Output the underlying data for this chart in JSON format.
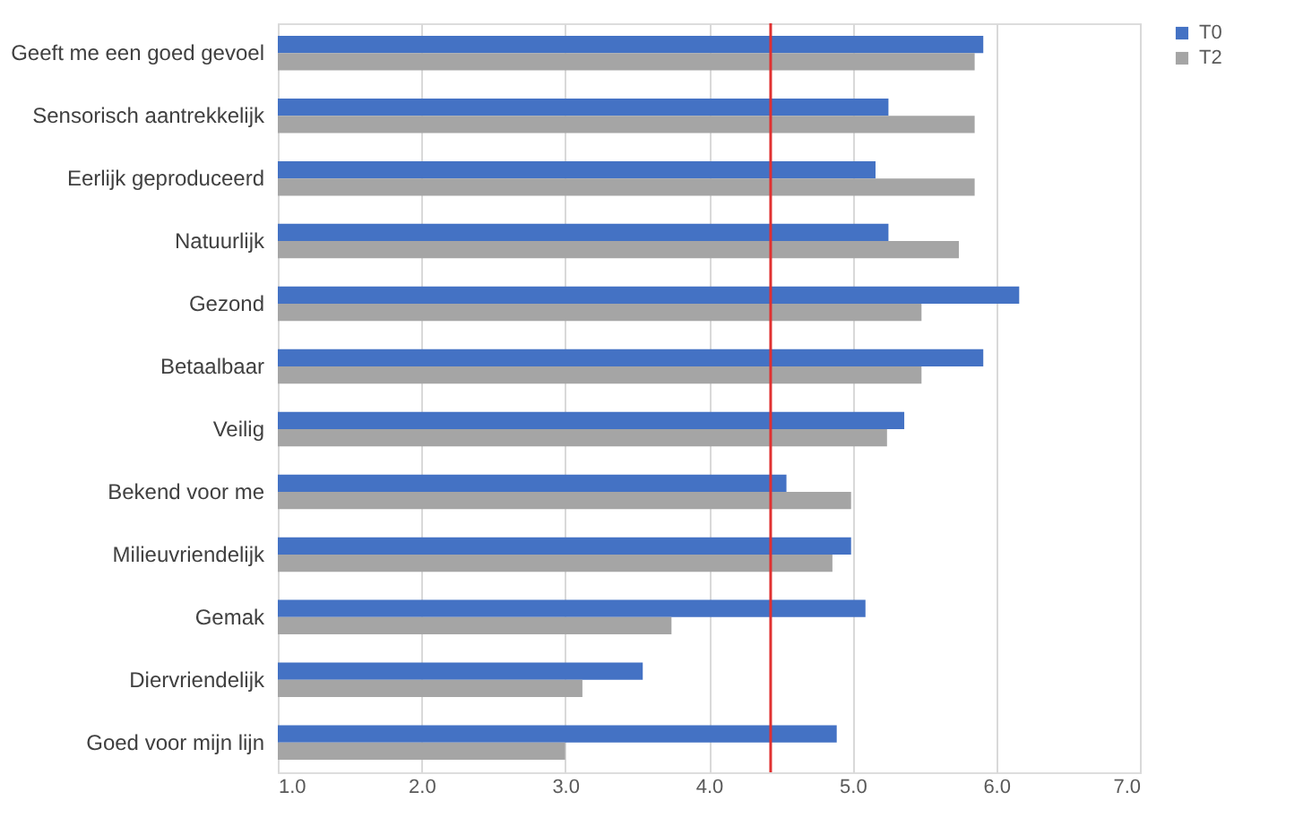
{
  "chart_data": {
    "type": "bar",
    "orientation": "horizontal",
    "categories": [
      "Geeft me een goed gevoel",
      "Sensorisch aantrekkelijk",
      "Eerlijk geproduceerd",
      "Natuurlijk",
      "Gezond",
      "Betaalbaar",
      "Veilig",
      "Bekend voor me",
      "Milieuvriendelijk",
      "Gemak",
      "Diervriendelijk",
      "Goed voor mijn lijn"
    ],
    "series": [
      {
        "name": "T0",
        "color": "#4472c4",
        "values": [
          5.91,
          5.25,
          5.16,
          5.25,
          6.16,
          5.91,
          5.36,
          4.54,
          4.99,
          5.09,
          3.54,
          4.89
        ]
      },
      {
        "name": "T2",
        "color": "#a5a5a5",
        "values": [
          5.85,
          5.85,
          5.85,
          5.74,
          5.48,
          5.48,
          5.24,
          4.99,
          4.86,
          3.74,
          3.12,
          3.0
        ]
      }
    ],
    "xlim": [
      1,
      7
    ],
    "xticks": [
      {
        "value": 1,
        "label": "1.0"
      },
      {
        "value": 2,
        "label": "2.0"
      },
      {
        "value": 3,
        "label": "3.0"
      },
      {
        "value": 4,
        "label": "4.0"
      },
      {
        "value": 5,
        "label": "5.0"
      },
      {
        "value": 6,
        "label": "6.0"
      },
      {
        "value": 7,
        "label": "7.0"
      }
    ],
    "ref_lines": [
      {
        "axis": "x",
        "value": 4.43,
        "label": null,
        "color": "#e03030"
      }
    ],
    "grid": "x",
    "legend": "right"
  }
}
